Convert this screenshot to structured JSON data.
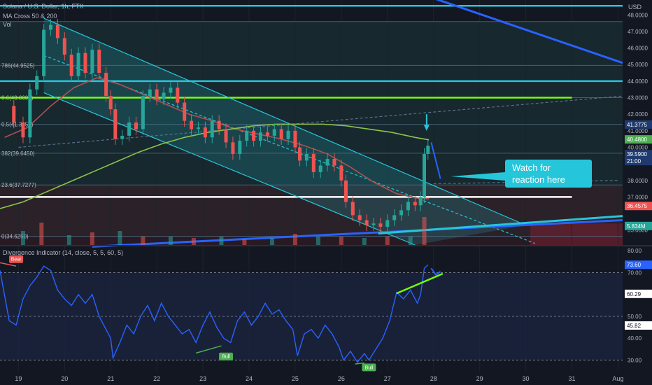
{
  "header": {
    "symbol": "Solana / U.S. Dollar, 1h, FTX",
    "ma_label": "MA Cross 50 & 200",
    "vol_label": "Vol",
    "currency": "USD"
  },
  "callout": {
    "text": "Watch for reaction here"
  },
  "colors": {
    "background": "#131722",
    "channel": "#26c6da",
    "bear": "#ef5350",
    "bull": "#4caf50",
    "indicator": "#2962ff",
    "green_line": "#76ff03",
    "ma50": "#b05050",
    "ma200": "#8bc34a"
  },
  "chart_data": [
    {
      "type": "candlestick",
      "title": "Solana / U.S. Dollar, 1h, FTX",
      "y_axis": {
        "unit": "USD",
        "range": [
          34.1,
          48.9
        ],
        "ticks": [
          "48.0000",
          "47.0000",
          "46.0000",
          "45.0000",
          "44.0000",
          "43.0000",
          "42.0000",
          "41.0000",
          "40.0000",
          "38.0000",
          "37.0000",
          "35.0000"
        ]
      },
      "x_axis": {
        "range": [
          18.6,
          32.1
        ],
        "ticks": [
          {
            "x": 19,
            "label": "19"
          },
          {
            "x": 20,
            "label": "20"
          },
          {
            "x": 21,
            "label": "21"
          },
          {
            "x": 22,
            "label": "22"
          },
          {
            "x": 23,
            "label": "23"
          },
          {
            "x": 24,
            "label": "24"
          },
          {
            "x": 25,
            "label": "25"
          },
          {
            "x": 26,
            "label": "26"
          },
          {
            "x": 27,
            "label": "27"
          },
          {
            "x": 28,
            "label": "28"
          },
          {
            "x": 29,
            "label": "29"
          },
          {
            "x": 30,
            "label": "30"
          },
          {
            "x": 31,
            "label": "31"
          },
          {
            "x": 32,
            "label": "Aug"
          }
        ]
      },
      "price_labels": [
        {
          "value": 41.3775,
          "label": "41.3775",
          "color": "#1e3a6e"
        },
        {
          "value": 40.48,
          "label": "40.4800",
          "color": "#4caf50"
        },
        {
          "value": 39.59,
          "label": "39.5900",
          "sub": "21:00",
          "color": "#1e3a6e"
        },
        {
          "value": 36.4575,
          "label": "36.4575",
          "color": "#ef5350"
        },
        {
          "value": 35.25,
          "label": "5.834M",
          "color": "#26a69a"
        }
      ],
      "fib_levels": [
        {
          "value": 47.6,
          "label": ""
        },
        {
          "value": 44.95,
          "label": "786(44.9525)"
        },
        {
          "value": 43.0,
          "label": "0.6(43.0000)"
        },
        {
          "value": 41.39,
          "label": "0.5(41.3950)"
        },
        {
          "value": 39.645,
          "label": "382(39.6450)"
        },
        {
          "value": 37.727,
          "label": "23.6(37.7277)"
        },
        {
          "value": 34.625,
          "label": "0(34.6250)"
        }
      ],
      "horizontal_lines": [
        {
          "value": 48.55,
          "color": "#26c6da"
        },
        {
          "value": 44.0,
          "color": "#26c6da"
        },
        {
          "value": 43.0,
          "color": "#76ff03"
        },
        {
          "value": 37.0,
          "color": "#ffffff"
        }
      ],
      "ohlc_path": [
        [
          18.7,
          42.5
        ],
        [
          18.9,
          41.5
        ],
        [
          19.1,
          40.6
        ],
        [
          19.25,
          43.5
        ],
        [
          19.4,
          44.3
        ],
        [
          19.55,
          47.1
        ],
        [
          19.7,
          47.4
        ],
        [
          19.85,
          46.6
        ],
        [
          20.0,
          45.6
        ],
        [
          20.15,
          44.3
        ],
        [
          20.3,
          45.7
        ],
        [
          20.45,
          44.5
        ],
        [
          20.6,
          45.9
        ],
        [
          20.75,
          44.5
        ],
        [
          20.9,
          43.1
        ],
        [
          21.0,
          42.3
        ],
        [
          21.1,
          40.5
        ],
        [
          21.25,
          40.7
        ],
        [
          21.4,
          41.5
        ],
        [
          21.55,
          41.1
        ],
        [
          21.7,
          43.1
        ],
        [
          21.85,
          43.5
        ],
        [
          22.0,
          42.9
        ],
        [
          22.15,
          43.3
        ],
        [
          22.3,
          43.6
        ],
        [
          22.45,
          42.7
        ],
        [
          22.6,
          41.6
        ],
        [
          22.75,
          41.1
        ],
        [
          22.9,
          41.2
        ],
        [
          23.05,
          40.6
        ],
        [
          23.2,
          41.6
        ],
        [
          23.35,
          41.1
        ],
        [
          23.5,
          40.3
        ],
        [
          23.65,
          39.6
        ],
        [
          23.8,
          40.4
        ],
        [
          23.95,
          41.0
        ],
        [
          24.1,
          40.4
        ],
        [
          24.25,
          40.9
        ],
        [
          24.4,
          40.7
        ],
        [
          24.55,
          41.1
        ],
        [
          24.7,
          40.5
        ],
        [
          24.85,
          41.0
        ],
        [
          25.0,
          40.0
        ],
        [
          25.1,
          39.2
        ],
        [
          25.25,
          39.6
        ],
        [
          25.4,
          38.5
        ],
        [
          25.55,
          38.9
        ],
        [
          25.7,
          39.3
        ],
        [
          25.85,
          38.9
        ],
        [
          26.0,
          38.0
        ],
        [
          26.1,
          36.7
        ],
        [
          26.25,
          35.9
        ],
        [
          26.4,
          35.6
        ],
        [
          26.55,
          35.3
        ],
        [
          26.7,
          35.4
        ],
        [
          26.85,
          35.2
        ],
        [
          27.0,
          35.6
        ],
        [
          27.15,
          35.9
        ],
        [
          27.3,
          36.2
        ],
        [
          27.45,
          36.7
        ],
        [
          27.6,
          36.5
        ],
        [
          27.72,
          37.0
        ],
        [
          27.8,
          39.6
        ],
        [
          27.88,
          40.1
        ]
      ],
      "moving_averages": [
        {
          "name": "MA 50",
          "color": "#b05050",
          "points": [
            [
              18.7,
              40.6
            ],
            [
              19.2,
              41.2
            ],
            [
              19.7,
              42.5
            ],
            [
              20.2,
              43.6
            ],
            [
              20.7,
              44.2
            ],
            [
              21.2,
              43.8
            ],
            [
              21.7,
              43.2
            ],
            [
              22.2,
              42.6
            ],
            [
              22.7,
              42.0
            ],
            [
              23.2,
              41.6
            ],
            [
              23.7,
              41.1
            ],
            [
              24.2,
              40.8
            ],
            [
              24.7,
              40.5
            ],
            [
              25.2,
              40.1
            ],
            [
              25.7,
              39.6
            ],
            [
              26.2,
              38.8
            ],
            [
              26.7,
              37.9
            ],
            [
              27.2,
              37.2
            ],
            [
              27.7,
              36.9
            ],
            [
              27.9,
              36.9
            ]
          ]
        },
        {
          "name": "MA 200",
          "color": "#8bc34a",
          "points": [
            [
              18.6,
              36.3
            ],
            [
              19.1,
              36.7
            ],
            [
              19.6,
              37.3
            ],
            [
              20.1,
              37.9
            ],
            [
              20.6,
              38.5
            ],
            [
              21.1,
              39.1
            ],
            [
              21.6,
              39.7
            ],
            [
              22.1,
              40.2
            ],
            [
              22.6,
              40.6
            ],
            [
              23.1,
              40.9
            ],
            [
              23.6,
              41.1
            ],
            [
              24.1,
              41.3
            ],
            [
              24.6,
              41.4
            ],
            [
              25.1,
              41.4
            ],
            [
              25.6,
              41.4
            ],
            [
              26.1,
              41.3
            ],
            [
              26.6,
              41.1
            ],
            [
              27.1,
              40.9
            ],
            [
              27.6,
              40.6
            ],
            [
              27.9,
              40.45
            ]
          ]
        }
      ],
      "trendlines": [
        {
          "role": "channel-upper",
          "from": [
            19.55,
            47.8
          ],
          "to": [
            30.0,
            35.3
          ],
          "color": "#26c6da"
        },
        {
          "role": "channel-lower",
          "from": [
            19.55,
            43.3
          ],
          "to": [
            27.6,
            34.1
          ],
          "color": "#26c6da"
        },
        {
          "role": "channel-mid",
          "from": [
            19.55,
            45.55
          ],
          "to": [
            30.2,
            34.2
          ],
          "color": "#26c6da",
          "dashed": true
        },
        {
          "role": "rising-support",
          "from": [
            20.6,
            34.0
          ],
          "to": [
            32.1,
            35.6
          ],
          "color": "#2962ff"
        },
        {
          "role": "rising-support-2",
          "from": [
            26.8,
            34.8
          ],
          "to": [
            32.1,
            35.85
          ],
          "color": "#26c6da"
        },
        {
          "role": "dashed-rising",
          "from": [
            19.0,
            40.0
          ],
          "to": [
            32.1,
            43.1
          ],
          "color": "#5b6f8f",
          "dashed": true
        },
        {
          "role": "upper-descending",
          "from": [
            27.8,
            49.2
          ],
          "to": [
            32.1,
            45.1
          ],
          "color": "#2962ff"
        },
        {
          "role": "dotted-target",
          "from": [
            28.0,
            37.8
          ],
          "to": [
            32.0,
            38.0
          ],
          "color": "#5b6f8f",
          "dashed": true
        }
      ],
      "volume_panel": {
        "label": "Vol",
        "last": "5.834M",
        "bars": [
          {
            "x": 19.1,
            "value": 0.5
          },
          {
            "x": 19.5,
            "value": 0.8
          },
          {
            "x": 20.1,
            "value": 0.35
          },
          {
            "x": 20.6,
            "value": 0.45
          },
          {
            "x": 21.2,
            "value": 0.5
          },
          {
            "x": 21.7,
            "value": 0.3
          },
          {
            "x": 22.3,
            "value": 0.3
          },
          {
            "x": 22.8,
            "value": 0.25
          },
          {
            "x": 23.4,
            "value": 0.3
          },
          {
            "x": 23.9,
            "value": 0.2
          },
          {
            "x": 24.5,
            "value": 0.25
          },
          {
            "x": 25.0,
            "value": 0.4
          },
          {
            "x": 25.5,
            "value": 0.3
          },
          {
            "x": 26.0,
            "value": 0.3
          },
          {
            "x": 26.5,
            "value": 0.25
          },
          {
            "x": 27.0,
            "value": 0.3
          },
          {
            "x": 27.5,
            "value": 0.3
          },
          {
            "x": 27.8,
            "value": 1.0
          }
        ]
      }
    },
    {
      "type": "line",
      "title": "Divergence Indicator (14, close, 5, 5, 60, 5)",
      "y_axis": {
        "range": [
          25,
          82
        ],
        "ticks": [
          "80.00",
          "70.00",
          "60.00",
          "50.00",
          "40.00",
          "30.00"
        ]
      },
      "value_labels": [
        {
          "value": 73.6,
          "label": "73.60",
          "color": "#2962ff"
        },
        {
          "value": 60.29,
          "label": "60.29",
          "color": "#ffffff"
        },
        {
          "value": 45.82,
          "label": "45.82",
          "color": "#ffffff"
        }
      ],
      "series": [
        {
          "color": "#2962ff",
          "points": [
            [
              18.6,
              71
            ],
            [
              18.8,
              48
            ],
            [
              18.95,
              46
            ],
            [
              19.1,
              58
            ],
            [
              19.25,
              64
            ],
            [
              19.4,
              68
            ],
            [
              19.55,
              73
            ],
            [
              19.7,
              71
            ],
            [
              19.85,
              62
            ],
            [
              20.0,
              58
            ],
            [
              20.15,
              55
            ],
            [
              20.3,
              60
            ],
            [
              20.45,
              56
            ],
            [
              20.6,
              60
            ],
            [
              20.75,
              50
            ],
            [
              20.9,
              44
            ],
            [
              21.0,
              40
            ],
            [
              21.05,
              31
            ],
            [
              21.2,
              38
            ],
            [
              21.35,
              46
            ],
            [
              21.5,
              42
            ],
            [
              21.65,
              50
            ],
            [
              21.8,
              55
            ],
            [
              21.95,
              48
            ],
            [
              22.1,
              56
            ],
            [
              22.25,
              50
            ],
            [
              22.4,
              46
            ],
            [
              22.55,
              42
            ],
            [
              22.7,
              44
            ],
            [
              22.85,
              38
            ],
            [
              23.0,
              46
            ],
            [
              23.15,
              52
            ],
            [
              23.3,
              45
            ],
            [
              23.45,
              40
            ],
            [
              23.6,
              38
            ],
            [
              23.75,
              48
            ],
            [
              23.9,
              52
            ],
            [
              24.05,
              46
            ],
            [
              24.2,
              50
            ],
            [
              24.35,
              56
            ],
            [
              24.5,
              51
            ],
            [
              24.65,
              53
            ],
            [
              24.8,
              48
            ],
            [
              24.95,
              44
            ],
            [
              25.05,
              32
            ],
            [
              25.2,
              42
            ],
            [
              25.35,
              44
            ],
            [
              25.5,
              40
            ],
            [
              25.65,
              46
            ],
            [
              25.8,
              42
            ],
            [
              25.95,
              36
            ],
            [
              26.05,
              30
            ],
            [
              26.2,
              34
            ],
            [
              26.35,
              29
            ],
            [
              26.5,
              33
            ],
            [
              26.6,
              30
            ],
            [
              26.75,
              35
            ],
            [
              26.9,
              40
            ],
            [
              27.05,
              48
            ],
            [
              27.2,
              61
            ],
            [
              27.35,
              58
            ],
            [
              27.5,
              62
            ],
            [
              27.65,
              56
            ],
            [
              27.72,
              60
            ],
            [
              27.8,
              72
            ],
            [
              27.88,
              73.6
            ]
          ]
        }
      ],
      "hlines": [
        {
          "value": 70,
          "dashed": true
        },
        {
          "value": 50,
          "dashed": true
        },
        {
          "value": 30,
          "dashed": true
        }
      ],
      "signals": [
        {
          "label": "Bear",
          "x": 18.95,
          "y": 76,
          "color": "#ef5350"
        },
        {
          "label": "Bull",
          "x": 23.5,
          "y": 31.5,
          "color": "#4caf50"
        },
        {
          "label": "Bull",
          "x": 26.6,
          "y": 26.5,
          "color": "#4caf50"
        }
      ],
      "divergence_lines": [
        {
          "from": [
            18.6,
            74.5
          ],
          "to": [
            18.95,
            73
          ],
          "color": "#ef5350"
        },
        {
          "from": [
            22.85,
            33.2
          ],
          "to": [
            23.4,
            36.5
          ],
          "color": "#4caf50"
        },
        {
          "from": [
            26.3,
            28.2
          ],
          "to": [
            26.5,
            28.7
          ],
          "color": "#4caf50"
        },
        {
          "from": [
            27.2,
            60.5
          ],
          "to": [
            28.2,
            69.5
          ],
          "color": "#76ff03"
        }
      ]
    }
  ]
}
